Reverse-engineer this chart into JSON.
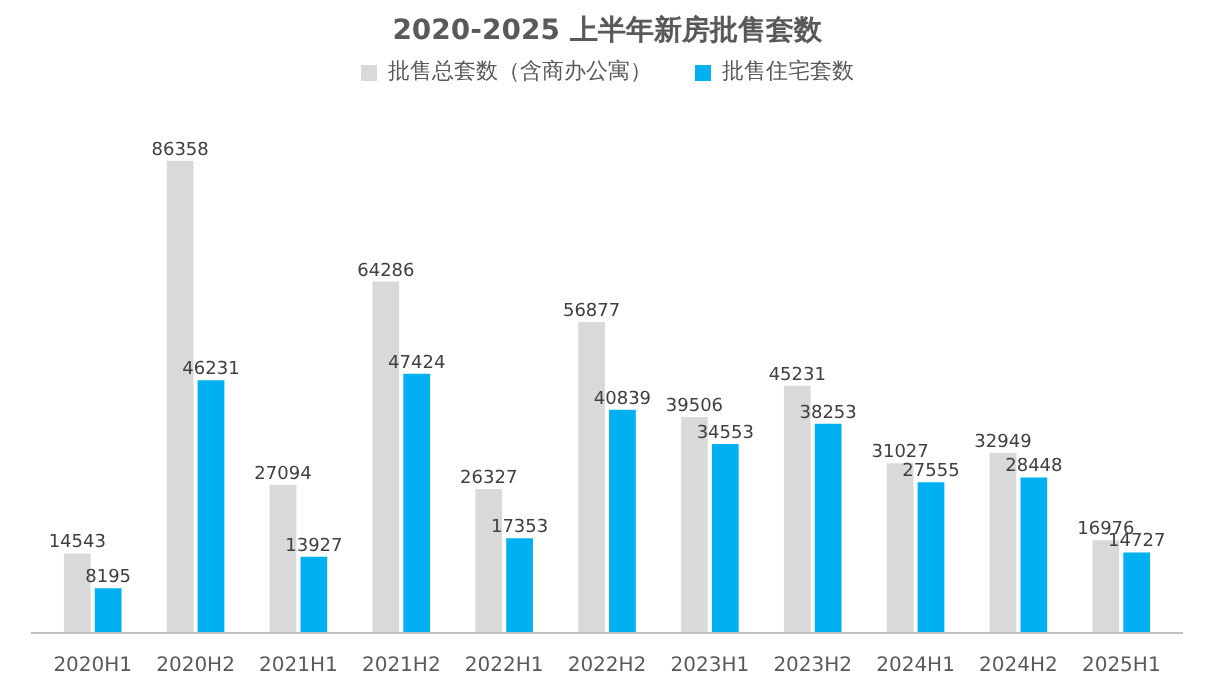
{
  "chart_data": {
    "type": "bar",
    "title": "2020-2025 上半年新房批售套数",
    "categories": [
      "2020H1",
      "2020H2",
      "2021H1",
      "2021H2",
      "2022H1",
      "2022H2",
      "2023H1",
      "2023H2",
      "2024H1",
      "2024H2",
      "2025H1"
    ],
    "series": [
      {
        "name": "批售总套数（含商办公寓）",
        "color": "#d9d9d9",
        "values": [
          14543,
          86358,
          27094,
          64286,
          26327,
          56877,
          39506,
          45231,
          31027,
          32949,
          16976
        ]
      },
      {
        "name": "批售住宅套数",
        "color": "#00b0f0",
        "values": [
          8195,
          46231,
          13927,
          47424,
          17353,
          40839,
          34553,
          38253,
          27555,
          28448,
          14727
        ]
      }
    ],
    "data_labels": true,
    "legend": "top",
    "grid": false
  }
}
